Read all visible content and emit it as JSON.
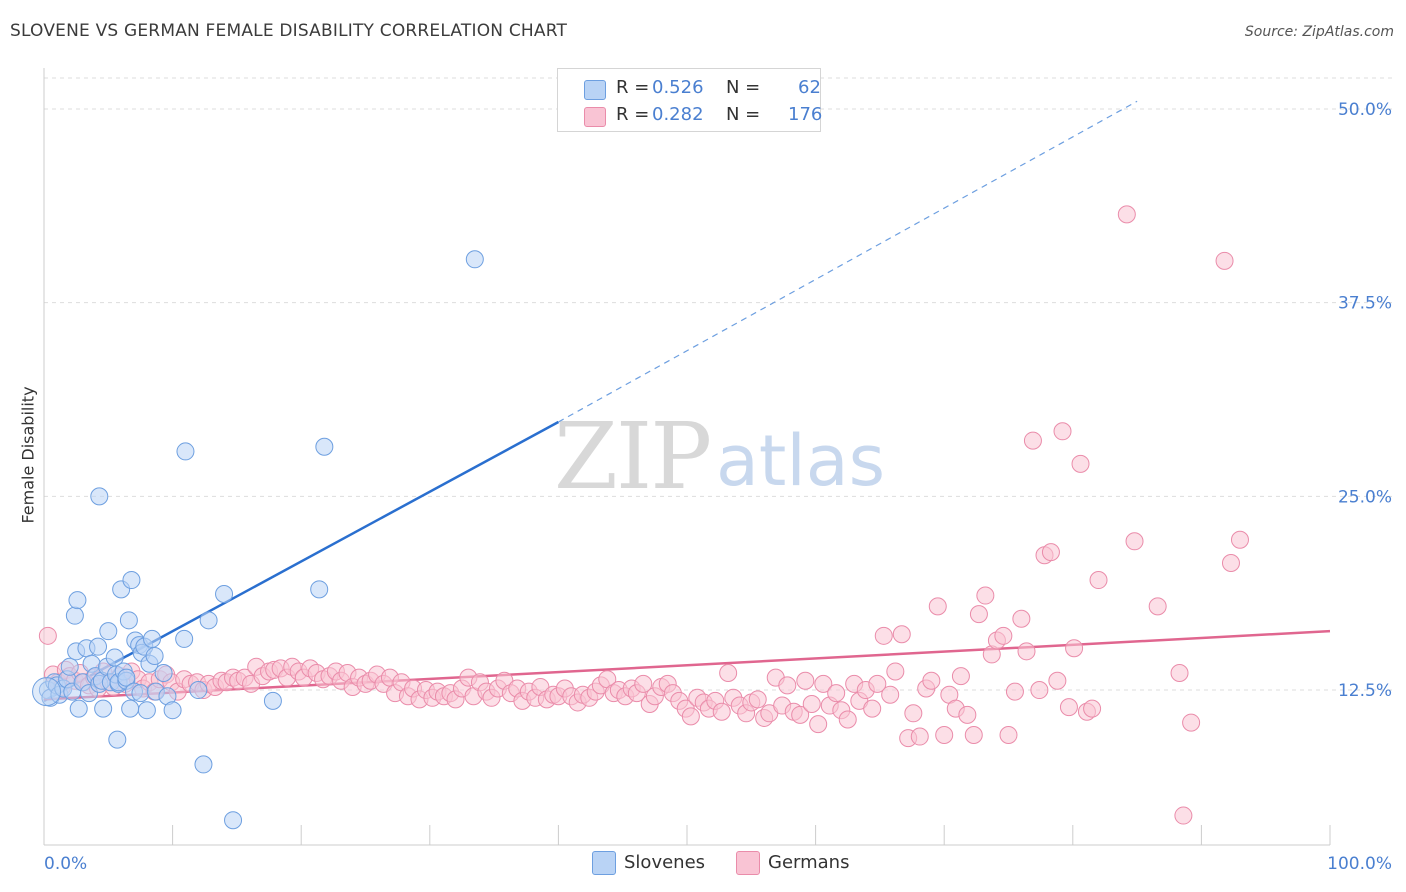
{
  "header": {
    "title": "SLOVENE VS GERMAN FEMALE DISABILITY CORRELATION CHART",
    "source": "Source: ZipAtlas.com"
  },
  "watermark": {
    "zip": "ZIP",
    "atlas": "atlas"
  },
  "legend": {
    "rows": [
      {
        "r_label": "R =",
        "r_value": "0.526",
        "n_label": "N =",
        "n_value": "62",
        "color": "#b9d3f5",
        "border": "#6d9fe0"
      },
      {
        "r_label": "R =",
        "r_value": "0.282",
        "n_label": "N =",
        "n_value": "176",
        "color": "#f9c4d4",
        "border": "#ea8caa"
      }
    ]
  },
  "bottom_legend": {
    "items": [
      {
        "label": "Slovenes",
        "color": "#b9d3f5",
        "border": "#6d9fe0"
      },
      {
        "label": "Germans",
        "color": "#f9c4d4",
        "border": "#ea8caa"
      }
    ]
  },
  "chart_data": {
    "type": "scatter",
    "title": "SLOVENE VS GERMAN FEMALE DISABILITY CORRELATION CHART",
    "xlabel": "",
    "ylabel": "Female Disability",
    "xlim": [
      0,
      100
    ],
    "ylim": [
      2.5,
      52
    ],
    "x_tick_labels": [
      "0.0%",
      "100.0%"
    ],
    "y_ticks": [
      12.5,
      25.0,
      37.5,
      50.0
    ],
    "y_tick_labels": [
      "12.5%",
      "25.0%",
      "37.5%",
      "50.0%"
    ],
    "grid": "horizontal dashed",
    "legend_position": "top-center",
    "series": [
      {
        "name": "Slovenes",
        "color": "#6d9fe0",
        "fill": "#b9d3f5",
        "trend": {
          "x0": 0,
          "y0": 11.8,
          "x1": 40,
          "y1": 29.8,
          "dash_to_x": 85,
          "dash_to_y": 50.5,
          "color": "#2a6fcf"
        },
        "points": [
          [
            0.3,
            12.5
          ],
          [
            0.5,
            12.0
          ],
          [
            0.8,
            13.0
          ],
          [
            1.0,
            12.8
          ],
          [
            1.2,
            12.2
          ],
          [
            1.5,
            12.6
          ],
          [
            1.8,
            13.2
          ],
          [
            2.0,
            14.0
          ],
          [
            2.2,
            12.4
          ],
          [
            2.5,
            15.0
          ],
          [
            2.7,
            11.3
          ],
          [
            2.4,
            17.3
          ],
          [
            2.6,
            18.3
          ],
          [
            3.0,
            13.0
          ],
          [
            3.3,
            15.2
          ],
          [
            3.5,
            12.3
          ],
          [
            3.7,
            14.2
          ],
          [
            4.0,
            13.4
          ],
          [
            4.2,
            15.3
          ],
          [
            4.3,
            12.9
          ],
          [
            4.5,
            13.1
          ],
          [
            4.9,
            14.0
          ],
          [
            4.3,
            25.0
          ],
          [
            4.6,
            11.3
          ],
          [
            5.0,
            16.3
          ],
          [
            5.2,
            13.0
          ],
          [
            5.5,
            14.6
          ],
          [
            5.8,
            12.9
          ],
          [
            5.6,
            13.5
          ],
          [
            5.8,
            13.0
          ],
          [
            6.0,
            19.0
          ],
          [
            6.2,
            13.7
          ],
          [
            5.7,
            9.3
          ],
          [
            6.4,
            13.1
          ],
          [
            6.6,
            17.0
          ],
          [
            6.7,
            11.3
          ],
          [
            6.4,
            13.3
          ],
          [
            6.8,
            19.6
          ],
          [
            7.0,
            12.4
          ],
          [
            7.1,
            15.7
          ],
          [
            7.5,
            12.3
          ],
          [
            7.4,
            15.4
          ],
          [
            7.6,
            14.9
          ],
          [
            7.8,
            15.3
          ],
          [
            8.0,
            11.2
          ],
          [
            8.2,
            14.2
          ],
          [
            8.4,
            15.8
          ],
          [
            8.6,
            14.7
          ],
          [
            8.7,
            12.4
          ],
          [
            9.3,
            13.6
          ],
          [
            9.6,
            12.1
          ],
          [
            10.0,
            11.2
          ],
          [
            10.9,
            15.8
          ],
          [
            11.0,
            27.9
          ],
          [
            12.0,
            12.5
          ],
          [
            12.4,
            7.7
          ],
          [
            14.7,
            4.1
          ],
          [
            14.0,
            18.7
          ],
          [
            12.8,
            17.0
          ],
          [
            17.8,
            11.8
          ],
          [
            21.4,
            19.0
          ],
          [
            21.8,
            28.2
          ],
          [
            33.5,
            40.3
          ]
        ]
      },
      {
        "name": "Germans",
        "color": "#ea8caa",
        "fill": "#f9c4d4",
        "trend": {
          "x0": 0,
          "y0": 11.9,
          "x1": 100,
          "y1": 16.3,
          "color": "#e0668f"
        },
        "points": [
          [
            0.3,
            16.0
          ],
          [
            0.7,
            13.5
          ],
          [
            1.1,
            13.0
          ],
          [
            1.4,
            12.7
          ],
          [
            1.7,
            13.8
          ],
          [
            2.0,
            13.4
          ],
          [
            2.4,
            13.1
          ],
          [
            2.8,
            13.6
          ],
          [
            3.1,
            13.0
          ],
          [
            3.5,
            12.8
          ],
          [
            3.9,
            13.3
          ],
          [
            4.2,
            12.6
          ],
          [
            4.6,
            13.7
          ],
          [
            5.0,
            13.0
          ],
          [
            5.4,
            12.7
          ],
          [
            5.9,
            13.4
          ],
          [
            6.3,
            12.9
          ],
          [
            6.8,
            13.7
          ],
          [
            7.3,
            13.2
          ],
          [
            7.7,
            12.6
          ],
          [
            8.2,
            13.0
          ],
          [
            8.6,
            12.4
          ],
          [
            9.0,
            13.2
          ],
          [
            9.5,
            13.5
          ],
          [
            9.9,
            13.0
          ],
          [
            10.4,
            12.4
          ],
          [
            10.9,
            13.2
          ],
          [
            11.4,
            12.9
          ],
          [
            11.9,
            13.0
          ],
          [
            12.4,
            12.5
          ],
          [
            12.8,
            12.9
          ],
          [
            13.3,
            12.7
          ],
          [
            13.8,
            13.1
          ],
          [
            14.2,
            13.0
          ],
          [
            14.7,
            13.3
          ],
          [
            15.1,
            13.1
          ],
          [
            15.6,
            13.3
          ],
          [
            16.1,
            12.9
          ],
          [
            16.5,
            14.0
          ],
          [
            17.0,
            13.4
          ],
          [
            17.5,
            13.7
          ],
          [
            17.9,
            13.8
          ],
          [
            18.4,
            13.9
          ],
          [
            18.9,
            13.3
          ],
          [
            19.3,
            14.0
          ],
          [
            19.8,
            13.7
          ],
          [
            20.2,
            13.3
          ],
          [
            20.7,
            13.9
          ],
          [
            21.2,
            13.6
          ],
          [
            21.7,
            13.2
          ],
          [
            22.2,
            13.4
          ],
          [
            22.7,
            13.7
          ],
          [
            23.1,
            13.1
          ],
          [
            23.6,
            13.6
          ],
          [
            24.0,
            12.7
          ],
          [
            24.5,
            13.3
          ],
          [
            25.0,
            12.9
          ],
          [
            25.4,
            13.1
          ],
          [
            25.9,
            13.5
          ],
          [
            26.4,
            12.9
          ],
          [
            26.9,
            13.3
          ],
          [
            27.3,
            12.3
          ],
          [
            27.8,
            13.0
          ],
          [
            28.3,
            12.1
          ],
          [
            28.7,
            12.6
          ],
          [
            29.2,
            11.9
          ],
          [
            29.7,
            12.5
          ],
          [
            30.2,
            12.0
          ],
          [
            30.6,
            12.4
          ],
          [
            31.1,
            12.1
          ],
          [
            31.6,
            12.3
          ],
          [
            32.0,
            11.9
          ],
          [
            32.5,
            12.6
          ],
          [
            33.0,
            13.3
          ],
          [
            33.4,
            12.1
          ],
          [
            33.9,
            13.0
          ],
          [
            34.4,
            12.4
          ],
          [
            34.8,
            12.0
          ],
          [
            35.3,
            12.6
          ],
          [
            35.8,
            13.1
          ],
          [
            36.3,
            12.3
          ],
          [
            36.8,
            12.6
          ],
          [
            37.2,
            11.8
          ],
          [
            37.7,
            12.4
          ],
          [
            38.2,
            12.0
          ],
          [
            38.6,
            12.7
          ],
          [
            39.1,
            11.9
          ],
          [
            39.6,
            12.2
          ],
          [
            40.0,
            12.1
          ],
          [
            40.5,
            12.6
          ],
          [
            41.0,
            12.1
          ],
          [
            41.5,
            11.7
          ],
          [
            41.9,
            12.2
          ],
          [
            42.4,
            12.0
          ],
          [
            42.9,
            12.4
          ],
          [
            43.3,
            12.8
          ],
          [
            43.8,
            13.2
          ],
          [
            44.3,
            12.3
          ],
          [
            44.7,
            12.5
          ],
          [
            45.2,
            12.1
          ],
          [
            45.7,
            12.6
          ],
          [
            46.1,
            12.3
          ],
          [
            46.6,
            12.9
          ],
          [
            47.1,
            11.6
          ],
          [
            47.5,
            12.1
          ],
          [
            48.0,
            12.7
          ],
          [
            48.5,
            12.9
          ],
          [
            48.9,
            12.3
          ],
          [
            49.4,
            11.8
          ],
          [
            49.9,
            11.3
          ],
          [
            50.3,
            10.8
          ],
          [
            50.8,
            12.0
          ],
          [
            51.3,
            11.7
          ],
          [
            51.7,
            11.3
          ],
          [
            52.2,
            11.8
          ],
          [
            52.7,
            11.1
          ],
          [
            53.2,
            13.6
          ],
          [
            53.6,
            12.0
          ],
          [
            54.1,
            11.5
          ],
          [
            54.6,
            11.0
          ],
          [
            55.0,
            11.7
          ],
          [
            55.5,
            11.9
          ],
          [
            56.0,
            10.7
          ],
          [
            56.4,
            11.0
          ],
          [
            56.9,
            13.3
          ],
          [
            57.4,
            11.5
          ],
          [
            57.8,
            12.8
          ],
          [
            58.3,
            11.1
          ],
          [
            58.8,
            10.9
          ],
          [
            59.2,
            13.1
          ],
          [
            59.7,
            11.6
          ],
          [
            60.2,
            10.3
          ],
          [
            60.6,
            12.9
          ],
          [
            61.1,
            11.5
          ],
          [
            61.6,
            12.3
          ],
          [
            62.0,
            11.2
          ],
          [
            62.5,
            10.6
          ],
          [
            63.0,
            12.9
          ],
          [
            63.4,
            11.8
          ],
          [
            63.9,
            12.5
          ],
          [
            64.4,
            11.3
          ],
          [
            64.8,
            12.9
          ],
          [
            65.3,
            16.0
          ],
          [
            65.8,
            12.2
          ],
          [
            66.2,
            13.7
          ],
          [
            66.7,
            16.1
          ],
          [
            67.2,
            9.4
          ],
          [
            67.6,
            11.0
          ],
          [
            68.1,
            9.5
          ],
          [
            68.6,
            12.6
          ],
          [
            69.0,
            13.1
          ],
          [
            69.5,
            17.9
          ],
          [
            70.0,
            9.6
          ],
          [
            70.4,
            12.2
          ],
          [
            70.9,
            11.3
          ],
          [
            71.3,
            13.4
          ],
          [
            71.8,
            10.9
          ],
          [
            72.3,
            9.6
          ],
          [
            72.7,
            17.4
          ],
          [
            73.2,
            18.6
          ],
          [
            73.7,
            14.8
          ],
          [
            74.1,
            15.7
          ],
          [
            74.6,
            16.0
          ],
          [
            75.0,
            9.6
          ],
          [
            75.5,
            12.4
          ],
          [
            76.0,
            17.1
          ],
          [
            76.4,
            15.0
          ],
          [
            76.9,
            28.6
          ],
          [
            77.4,
            12.5
          ],
          [
            77.8,
            21.2
          ],
          [
            78.3,
            21.4
          ],
          [
            78.8,
            13.1
          ],
          [
            79.2,
            29.2
          ],
          [
            79.7,
            11.4
          ],
          [
            80.1,
            15.2
          ],
          [
            80.6,
            27.1
          ],
          [
            81.1,
            11.1
          ],
          [
            81.5,
            11.3
          ],
          [
            82.0,
            19.6
          ],
          [
            84.2,
            43.2
          ],
          [
            84.8,
            22.1
          ],
          [
            86.6,
            17.9
          ],
          [
            88.3,
            13.6
          ],
          [
            88.6,
            4.4
          ],
          [
            89.2,
            10.4
          ],
          [
            91.8,
            40.2
          ],
          [
            92.3,
            20.7
          ],
          [
            93.0,
            22.2
          ]
        ]
      }
    ]
  }
}
